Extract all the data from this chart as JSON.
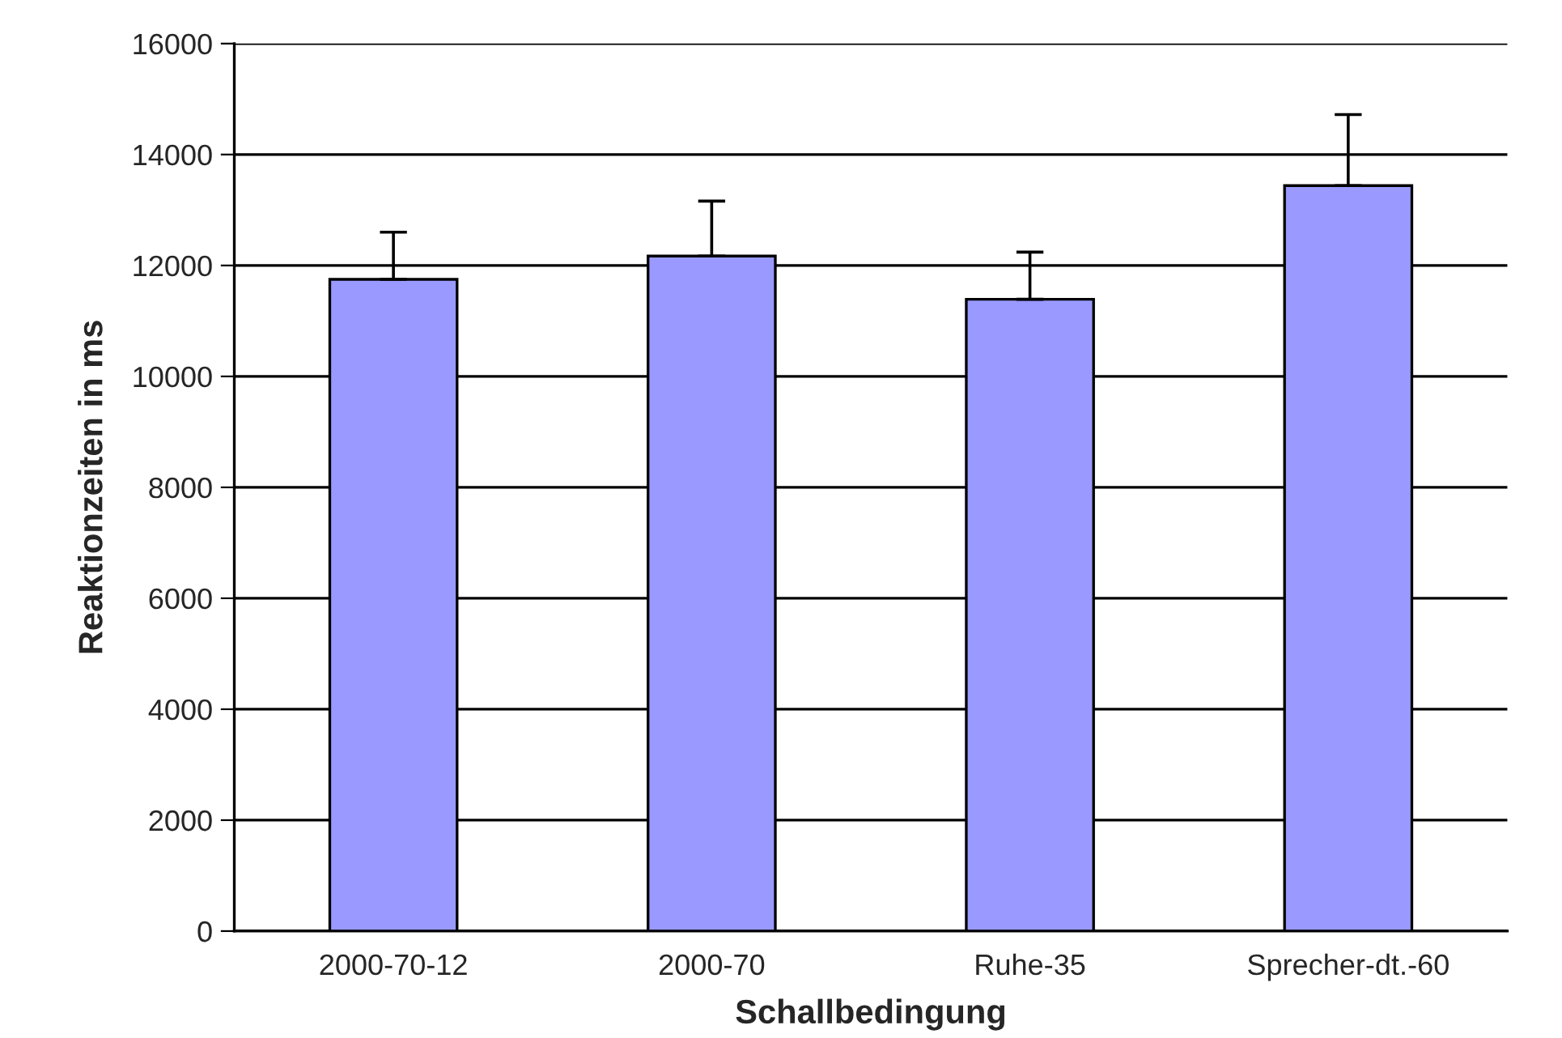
{
  "chart_data": {
    "type": "bar",
    "xlabel": "Schallbedingung",
    "ylabel": "Reaktionzeiten in ms",
    "categories": [
      "2000-70-12",
      "2000-70",
      "Ruhe-35",
      "Sprecher-dt.-60"
    ],
    "values": [
      11750,
      12170,
      11390,
      13440
    ],
    "errors": [
      [
        11750,
        12600
      ],
      [
        12170,
        13160
      ],
      [
        11390,
        12240
      ],
      [
        13440,
        14720
      ]
    ],
    "color": "#9999ff",
    "ylim": [
      0,
      16000
    ],
    "yticks": [
      0,
      2000,
      4000,
      6000,
      8000,
      10000,
      12000,
      14000,
      16000
    ],
    "grid": "y",
    "legend": false
  }
}
